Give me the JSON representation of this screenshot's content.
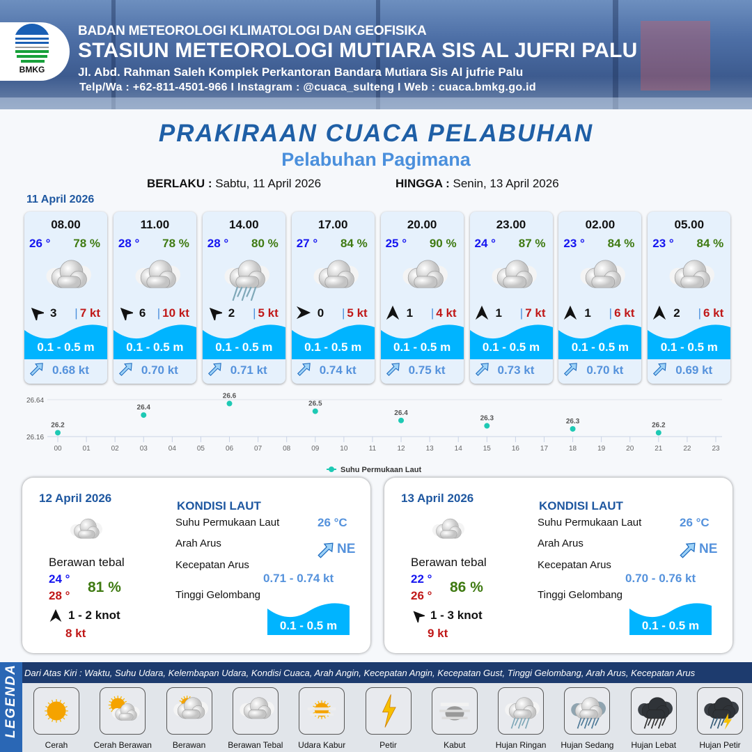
{
  "header": {
    "logo_text": "BMKG",
    "agency": "BADAN METEOROLOGI KLIMATOLOGI DAN GEOFISIKA",
    "station": "STASIUN METEOROLOGI MUTIARA SIS AL JUFRI PALU",
    "address": "Jl. Abd. Rahman Saleh Komplek Perkantoran Bandara Mutiara Sis Al jufrie Palu",
    "contact": "Telp/Wa : +62-811-4501-966  I  Instagram : @cuaca_sulteng  I  Web : cuaca.bmkg.go.id"
  },
  "title": "PRAKIRAAN CUACA PELABUHAN",
  "subtitle": "Pelabuhan Pagimana",
  "validity": {
    "from_label": "BERLAKU :",
    "from_value": "Sabtu, 11 April 2026",
    "to_label": "HINGGA :",
    "to_value": "Senin, 13 April 2026"
  },
  "day1": {
    "date": "11 April 2026",
    "cards": [
      {
        "time": "08.00",
        "temp": "26 °",
        "hum": "78 %",
        "icon": "berawan-tebal",
        "wind_dir_deg": 315,
        "wind": "3",
        "gust": "7 kt",
        "wave": "0.1 - 0.5 m",
        "current": "0.68 kt"
      },
      {
        "time": "11.00",
        "temp": "28 °",
        "hum": "78 %",
        "icon": "berawan-tebal",
        "wind_dir_deg": 315,
        "wind": "6",
        "gust": "10 kt",
        "wave": "0.1 - 0.5 m",
        "current": "0.70 kt"
      },
      {
        "time": "14.00",
        "temp": "28 °",
        "hum": "80 %",
        "icon": "hujan-ringan",
        "wind_dir_deg": 315,
        "wind": "2",
        "gust": "5 kt",
        "wave": "0.1 - 0.5 m",
        "current": "0.71 kt"
      },
      {
        "time": "17.00",
        "temp": "27 °",
        "hum": "84 %",
        "icon": "berawan-tebal",
        "wind_dir_deg": 90,
        "wind": "0",
        "gust": "5 kt",
        "wave": "0.1 - 0.5 m",
        "current": "0.74 kt"
      },
      {
        "time": "20.00",
        "temp": "25 °",
        "hum": "90 %",
        "icon": "berawan-tebal",
        "wind_dir_deg": 0,
        "wind": "1",
        "gust": "4 kt",
        "wave": "0.1 - 0.5 m",
        "current": "0.75 kt"
      },
      {
        "time": "23.00",
        "temp": "24 °",
        "hum": "87 %",
        "icon": "berawan-tebal",
        "wind_dir_deg": 0,
        "wind": "1",
        "gust": "7 kt",
        "wave": "0.1 - 0.5 m",
        "current": "0.73 kt"
      },
      {
        "time": "02.00",
        "temp": "23 °",
        "hum": "84 %",
        "icon": "berawan-tebal",
        "wind_dir_deg": 0,
        "wind": "1",
        "gust": "6 kt",
        "wave": "0.1 - 0.5 m",
        "current": "0.70 kt"
      },
      {
        "time": "05.00",
        "temp": "23 °",
        "hum": "84 %",
        "icon": "berawan-tebal",
        "wind_dir_deg": 0,
        "wind": "2",
        "gust": "6 kt",
        "wave": "0.1 - 0.5 m",
        "current": "0.69 kt"
      }
    ]
  },
  "chart_data": {
    "type": "scatter",
    "series": [
      {
        "name": "Suhu Permukaan Laut",
        "x": [
          "00",
          "03",
          "06",
          "09",
          "12",
          "15",
          "18",
          "21"
        ],
        "values": [
          26.21,
          26.44,
          26.59,
          26.49,
          26.37,
          26.3,
          26.26,
          26.21
        ],
        "labels": [
          "26.2",
          "26.4",
          "26.6",
          "26.5",
          "26.4",
          "26.3",
          "26.3",
          "26.2"
        ]
      }
    ],
    "x_ticks": [
      "00",
      "01",
      "02",
      "03",
      "04",
      "05",
      "06",
      "07",
      "08",
      "09",
      "10",
      "11",
      "12",
      "13",
      "14",
      "15",
      "16",
      "17",
      "18",
      "19",
      "20",
      "21",
      "22",
      "23"
    ],
    "y_ticks": [
      "26.16",
      "26.64"
    ],
    "ylim": [
      26.16,
      26.64
    ],
    "grid": true,
    "legend": "bottom",
    "color": "#1ec9b4"
  },
  "days": [
    {
      "date": "12 April 2026",
      "icon": "berawan-tebal",
      "desc": "Berawan tebal",
      "tmin": "24 °",
      "tmax": "28 °",
      "hum": "81 %",
      "wind_dir_deg": 0,
      "wind": "1  - 2 knot",
      "gust": "8 kt",
      "kondisi": {
        "title": "KONDISI LAUT",
        "sst_label": "Suhu Permukaan Laut",
        "sst": "26 °C",
        "dir_label": "Arah Arus",
        "dir": "NE",
        "speed_label": "Kecepatan Arus",
        "speed": "0.71  - 0.74 kt",
        "wave_label": "Tinggi Gelombang",
        "wave": "0.1 - 0.5 m"
      }
    },
    {
      "date": "13 April 2026",
      "icon": "berawan-tebal",
      "desc": "Berawan tebal",
      "tmin": "22 °",
      "tmax": "26 °",
      "hum": "86 %",
      "wind_dir_deg": 315,
      "wind": "1  - 3 knot",
      "gust": "9 kt",
      "kondisi": {
        "title": "KONDISI LAUT",
        "sst_label": "Suhu Permukaan Laut",
        "sst": "26 °C",
        "dir_label": "Arah Arus",
        "dir": "NE",
        "speed_label": "Kecepatan Arus",
        "speed": "0.70  - 0.76 kt",
        "wave_label": "Tinggi Gelombang",
        "wave": "0.1 - 0.5 m"
      }
    }
  ],
  "legend": {
    "title": "LEGENDA",
    "description": "Dari Atas Kiri : Waktu, Suhu Udara, Kelembapan Udara, Kondisi Cuaca, Arah Angin, Kecepatan Angin, Kecepatan Gust, Tinggi Gelombang, Arah Arus, Kecepatan Arus",
    "items": [
      {
        "label": "Cerah",
        "icon": "cerah"
      },
      {
        "label": "Cerah Berawan",
        "icon": "cerah-berawan"
      },
      {
        "label": "Berawan",
        "icon": "berawan"
      },
      {
        "label": "Berawan Tebal",
        "icon": "berawan-tebal"
      },
      {
        "label": "Udara Kabur",
        "icon": "udara-kabur"
      },
      {
        "label": "Petir",
        "icon": "petir"
      },
      {
        "label": "Kabut",
        "icon": "kabut"
      },
      {
        "label": "Hujan Ringan",
        "icon": "hujan-ringan"
      },
      {
        "label": "Hujan Sedang",
        "icon": "hujan-sedang"
      },
      {
        "label": "Hujan Lebat",
        "icon": "hujan-lebat"
      },
      {
        "label": "Hujan Petir",
        "icon": "hujan-petir"
      }
    ]
  },
  "colors": {
    "title": "#1f5fa6",
    "wave": "#00b4ff",
    "temp": "#1515f0",
    "humidity": "#3f7a12",
    "gust": "#c01818",
    "current": "#5592dc"
  }
}
